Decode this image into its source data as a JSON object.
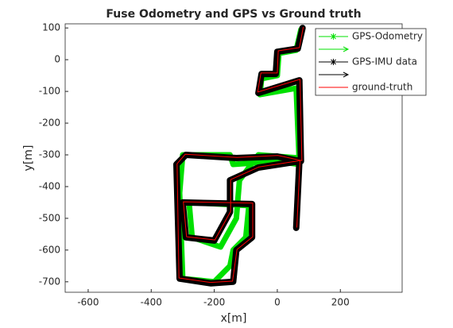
{
  "chart_data": {
    "type": "line",
    "title": "Fuse Odometry and GPS vs Ground truth",
    "xlabel": "x[m]",
    "ylabel": "y[m]",
    "xlim": [
      -673,
      396
    ],
    "ylim": [
      -733,
      113
    ],
    "xticks": [
      -600,
      -400,
      -200,
      0,
      200
    ],
    "yticks": [
      100,
      0,
      -100,
      -200,
      -300,
      -400,
      -500,
      -600,
      -700
    ],
    "series": [
      {
        "name": "GPS-Odometry",
        "color": "#00e000",
        "x": [
          75,
          60,
          5,
          0,
          -50,
          -55,
          60,
          70,
          0,
          -140,
          -150,
          -300,
          -310,
          -300,
          -200,
          -150,
          -140,
          -100,
          -90,
          -280,
          -270,
          -180,
          -130,
          -120,
          -60,
          70,
          60
        ],
        "y": [
          95,
          30,
          20,
          -50,
          -60,
          -110,
          -90,
          -330,
          -320,
          -330,
          -300,
          -300,
          -420,
          -690,
          -700,
          -650,
          -600,
          -560,
          -460,
          -450,
          -560,
          -590,
          -500,
          -380,
          -300,
          -310,
          -520
        ]
      },
      {
        "name": "GPS-IMU data",
        "color": "#000000",
        "x": [
          80,
          65,
          0,
          -5,
          -50,
          -60,
          70,
          75,
          0,
          -130,
          -290,
          -320,
          -310,
          -210,
          -140,
          -130,
          -80,
          -80,
          -300,
          -290,
          -200,
          -150,
          -150,
          -60,
          70,
          60
        ],
        "y": [
          100,
          35,
          25,
          -45,
          -45,
          -105,
          -65,
          -320,
          -305,
          -310,
          -300,
          -330,
          -690,
          -705,
          -700,
          -600,
          -560,
          -455,
          -450,
          -560,
          -570,
          -480,
          -380,
          -340,
          -320,
          -530
        ]
      },
      {
        "name": "ground-truth",
        "color": "#ff0000",
        "x": [
          82,
          70,
          3,
          0,
          -52,
          -62,
          72,
          78,
          2,
          -128,
          -292,
          -318,
          -312,
          -212,
          -142,
          -128,
          -78,
          -78,
          -298,
          -288,
          -198,
          -148,
          -148,
          -58,
          72,
          62
        ],
        "y": [
          102,
          38,
          28,
          -42,
          -42,
          -102,
          -62,
          -318,
          -302,
          -308,
          -298,
          -328,
          -688,
          -702,
          -698,
          -598,
          -558,
          -452,
          -448,
          -558,
          -568,
          -478,
          -378,
          -338,
          -318,
          -528
        ]
      }
    ]
  }
}
